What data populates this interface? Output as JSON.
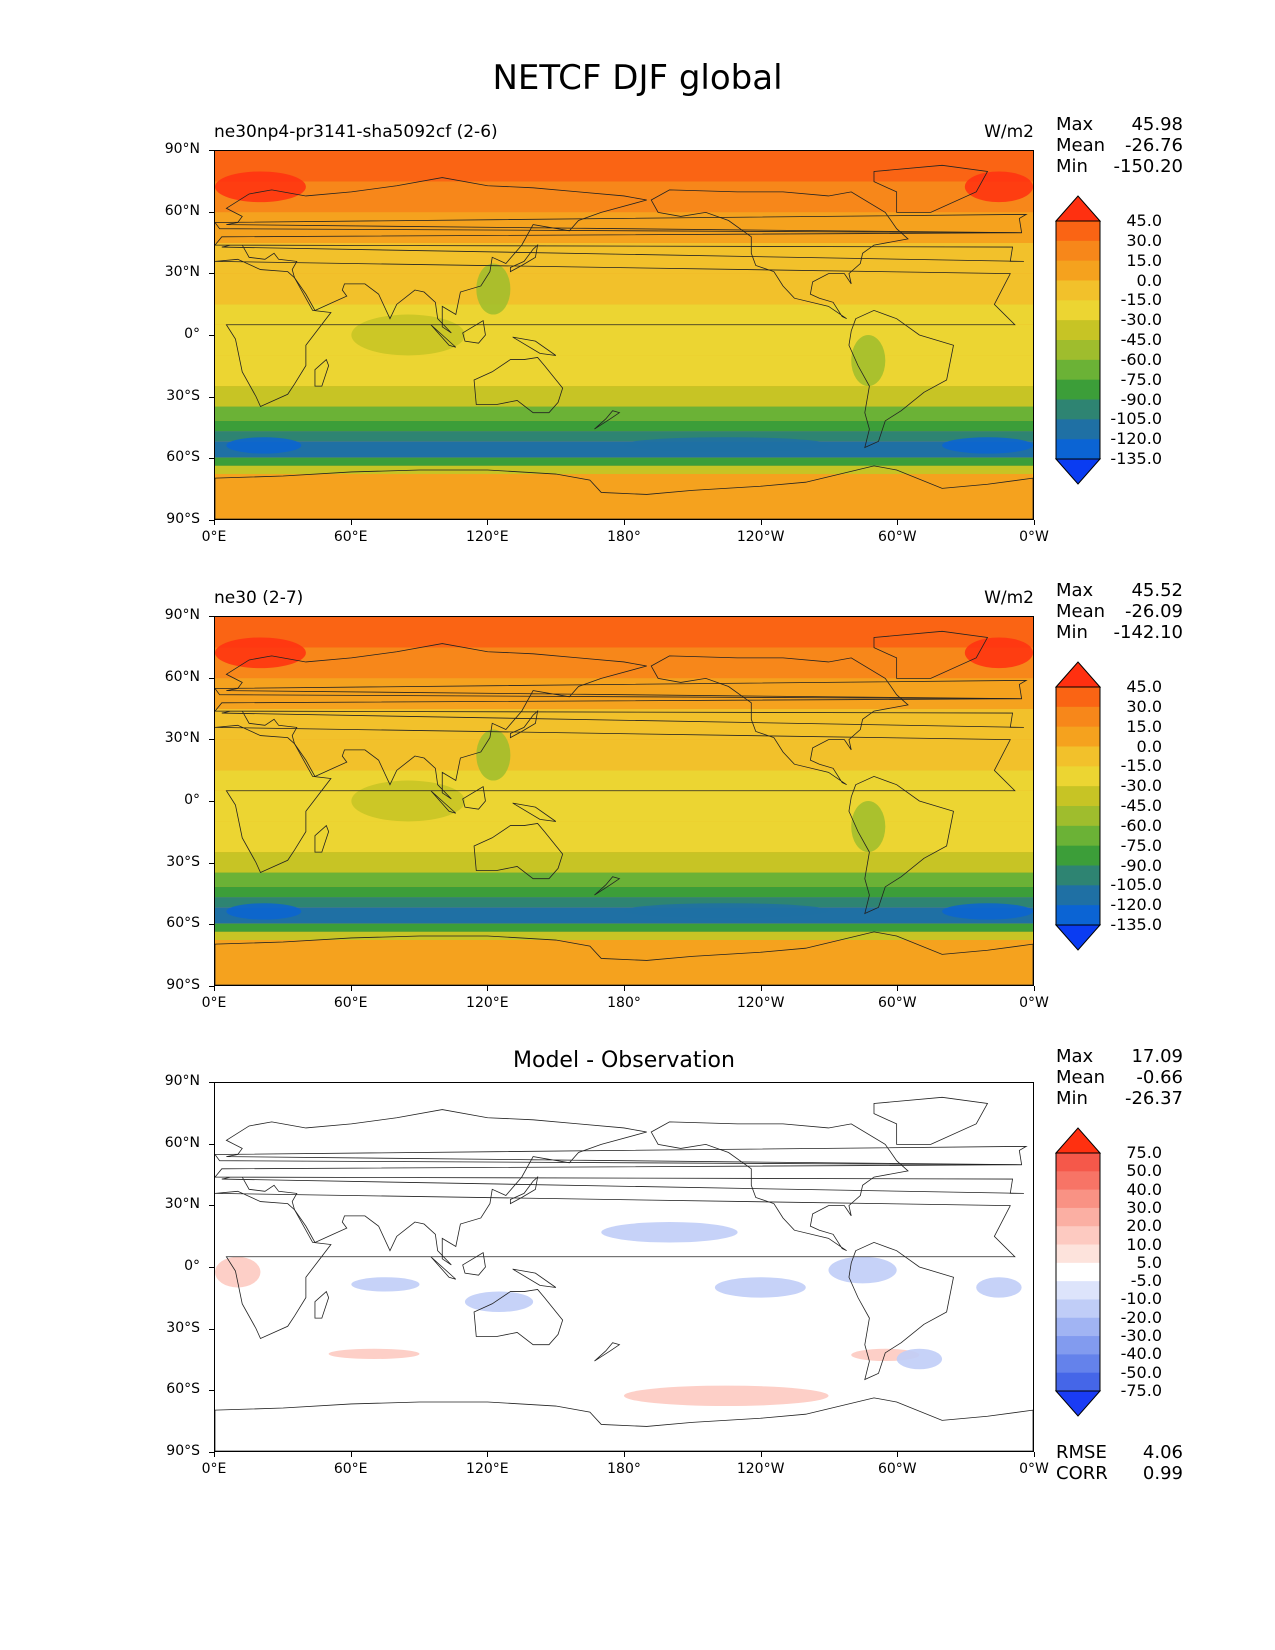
{
  "figure_title": "NETCF DJF global",
  "axes": {
    "yticks": [
      "90°N",
      "60°N",
      "30°N",
      "0°",
      "30°S",
      "60°S",
      "90°S"
    ],
    "xticks": [
      "0°E",
      "60°E",
      "120°E",
      "180°",
      "120°W",
      "60°W",
      "0°W"
    ]
  },
  "chart_data": [
    {
      "type": "heatmap",
      "left_title": "ne30np4-pr3141-sha5092cf (2-6)",
      "right_title": "W/m2",
      "stats": [
        {
          "label": "Max",
          "value": "45.98"
        },
        {
          "label": "Mean",
          "value": "-26.76"
        },
        {
          "label": "Min",
          "value": "-150.20"
        }
      ],
      "colorbar": {
        "levels": [
          "45.0",
          "30.0",
          "15.0",
          "0.0",
          "-15.0",
          "-30.0",
          "-45.0",
          "-60.0",
          "-75.0",
          "-90.0",
          "-105.0",
          "-120.0",
          "-135.0"
        ],
        "colors": [
          "#ff3010",
          "#fa6414",
          "#f7871a",
          "#f5a21e",
          "#f2c12b",
          "#ecd532",
          "#c7c425",
          "#9fbd2d",
          "#6bb236",
          "#3c9e39",
          "#2e8472",
          "#1f70a4",
          "#0b64d4",
          "#0a3cf2"
        ]
      },
      "x_range": [
        0,
        360
      ],
      "y_range": [
        -90,
        90
      ]
    },
    {
      "type": "heatmap",
      "left_title": "ne30 (2-7)",
      "right_title": "W/m2",
      "stats": [
        {
          "label": "Max",
          "value": "45.52"
        },
        {
          "label": "Mean",
          "value": "-26.09"
        },
        {
          "label": "Min",
          "value": "-142.10"
        }
      ],
      "colorbar": {
        "levels": [
          "45.0",
          "30.0",
          "15.0",
          "0.0",
          "-15.0",
          "-30.0",
          "-45.0",
          "-60.0",
          "-75.0",
          "-90.0",
          "-105.0",
          "-120.0",
          "-135.0"
        ],
        "colors": [
          "#ff3010",
          "#fa6414",
          "#f7871a",
          "#f5a21e",
          "#f2c12b",
          "#ecd532",
          "#c7c425",
          "#9fbd2d",
          "#6bb236",
          "#3c9e39",
          "#2e8472",
          "#1f70a4",
          "#0b64d4",
          "#0a3cf2"
        ]
      },
      "x_range": [
        0,
        360
      ],
      "y_range": [
        -90,
        90
      ]
    },
    {
      "type": "heatmap",
      "center_title": "Model - Observation",
      "stats": [
        {
          "label": "Max",
          "value": "17.09"
        },
        {
          "label": "Mean",
          "value": "-0.66"
        },
        {
          "label": "Min",
          "value": "-26.37"
        }
      ],
      "bottom_stats": [
        {
          "label": "RMSE",
          "value": "4.06"
        },
        {
          "label": "CORR",
          "value": "0.99"
        }
      ],
      "colorbar": {
        "levels": [
          "75.0",
          "50.0",
          "40.0",
          "30.0",
          "20.0",
          "10.0",
          "5.0",
          "-5.0",
          "-10.0",
          "-20.0",
          "-30.0",
          "-40.0",
          "-50.0",
          "-75.0"
        ],
        "colors": [
          "#ff3010",
          "#f5584a",
          "#f77466",
          "#f99284",
          "#fbafa3",
          "#fdcac1",
          "#fde3dc",
          "#ffffff",
          "#dde4fb",
          "#c0cdf7",
          "#a1b4f3",
          "#829bef",
          "#6482eb",
          "#4566e8",
          "#1a3cf5"
        ]
      },
      "x_range": [
        0,
        360
      ],
      "y_range": [
        -90,
        90
      ]
    }
  ]
}
